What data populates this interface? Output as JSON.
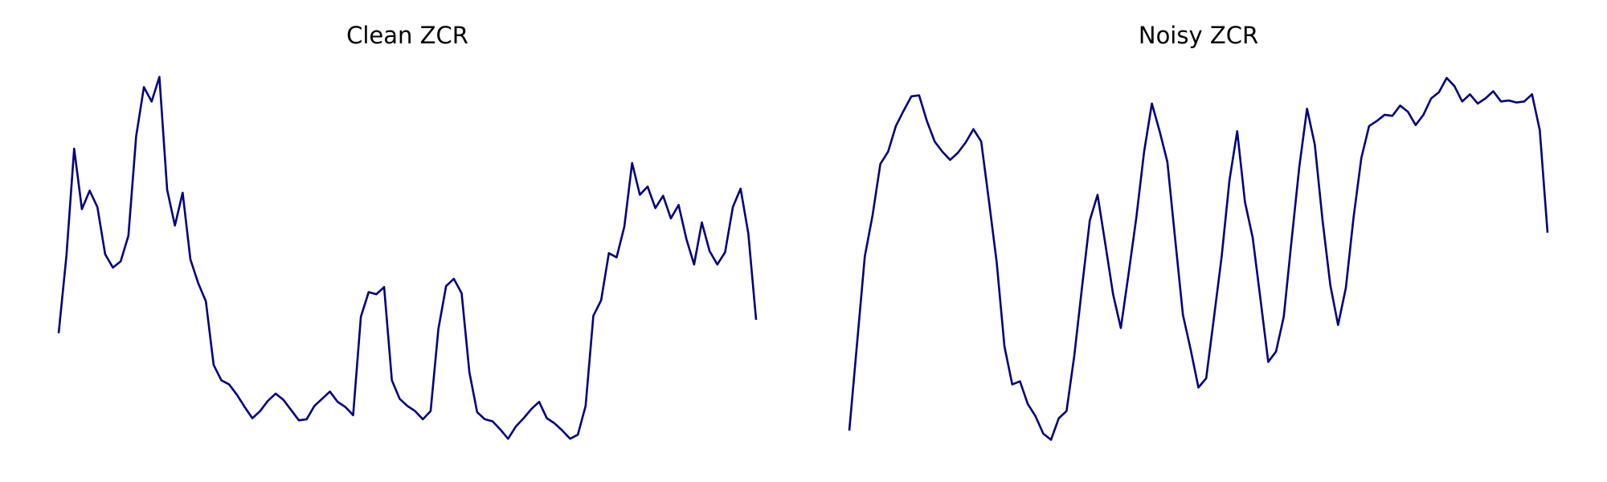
{
  "chart_data": [
    {
      "type": "line",
      "title": "Clean ZCR",
      "x": [
        0,
        1,
        2,
        3,
        4,
        5,
        6,
        7,
        8,
        9,
        10,
        11,
        12,
        13,
        14,
        15,
        16,
        17,
        18,
        19,
        20,
        21,
        22,
        23,
        24,
        25,
        26,
        27,
        28,
        29,
        30,
        31,
        32,
        33,
        34,
        35,
        36,
        37,
        38,
        39,
        40,
        41,
        42,
        43,
        44,
        45,
        46,
        47,
        48,
        49,
        50,
        51,
        52,
        53,
        54,
        55,
        56,
        57,
        58,
        59,
        60,
        61,
        62,
        63,
        64,
        65,
        66,
        67,
        68,
        69,
        70,
        71,
        72,
        73,
        74,
        75,
        76,
        77,
        78,
        79,
        80,
        81,
        82,
        83,
        84,
        85,
        86,
        87,
        88,
        89,
        90
      ],
      "series": [
        {
          "color": "#000080",
          "values": [
            135,
            210,
            315,
            256,
            274,
            258,
            212,
            199,
            205,
            230,
            327,
            375,
            361,
            385,
            275,
            240,
            272,
            207,
            184,
            166,
            104,
            89,
            85,
            75,
            63,
            52,
            59,
            69,
            76,
            70,
            60,
            50,
            51,
            64,
            71,
            78,
            68,
            63,
            55,
            151,
            175,
            173,
            180,
            89,
            71,
            64,
            59,
            51,
            59,
            139,
            181,
            188,
            174,
            97,
            58,
            51,
            49,
            41,
            32,
            44,
            52,
            61,
            68,
            52,
            47,
            40,
            32,
            36,
            64,
            152,
            167,
            213,
            209,
            239,
            301,
            270,
            278,
            257,
            269,
            247,
            260,
            227,
            202,
            243,
            215,
            202,
            214,
            258,
            276,
            232,
            148
          ]
        }
      ],
      "xlim": [
        0,
        90
      ],
      "ylim": [
        0,
        460
      ]
    },
    {
      "type": "line",
      "title": "Noisy ZCR",
      "x": [
        0,
        1,
        2,
        3,
        4,
        5,
        6,
        7,
        8,
        9,
        10,
        11,
        12,
        13,
        14,
        15,
        16,
        17,
        18,
        19,
        20,
        21,
        22,
        23,
        24,
        25,
        26,
        27,
        28,
        29,
        30,
        31,
        32,
        33,
        34,
        35,
        36,
        37,
        38,
        39,
        40,
        41,
        42,
        43,
        44,
        45,
        46,
        47,
        48,
        49,
        50,
        51,
        52,
        53,
        54,
        55,
        56,
        57,
        58,
        59,
        60,
        61,
        62,
        63,
        64,
        65,
        66,
        67,
        68,
        69,
        70,
        71,
        72,
        73,
        74,
        75,
        76,
        77,
        78,
        79,
        80,
        81,
        82,
        83,
        84,
        85,
        86,
        87,
        88,
        89,
        90
      ],
      "series": [
        {
          "color": "#000080",
          "values": [
            40,
            125,
            210,
            250,
            300,
            312,
            337,
            352,
            366,
            367,
            342,
            322,
            312,
            304,
            311,
            321,
            334,
            322,
            264,
            204,
            122,
            85,
            88,
            66,
            54,
            37,
            31,
            52,
            59,
            113,
            180,
            245,
            270,
            222,
            173,
            140,
            193,
            248,
            312,
            359,
            332,
            302,
            227,
            153,
            119,
            82,
            91,
            150,
            210,
            284,
            332,
            263,
            228,
            168,
            107,
            117,
            151,
            225,
            297,
            354,
            319,
            245,
            182,
            143,
            179,
            248,
            306,
            337,
            342,
            348,
            347,
            357,
            351,
            338,
            348,
            364,
            370,
            384,
            376,
            361,
            368,
            359,
            364,
            371,
            361,
            362,
            360,
            361,
            368,
            333,
            233
          ]
        }
      ],
      "xlim": [
        0,
        90
      ],
      "ylim": [
        0,
        460
      ]
    }
  ]
}
